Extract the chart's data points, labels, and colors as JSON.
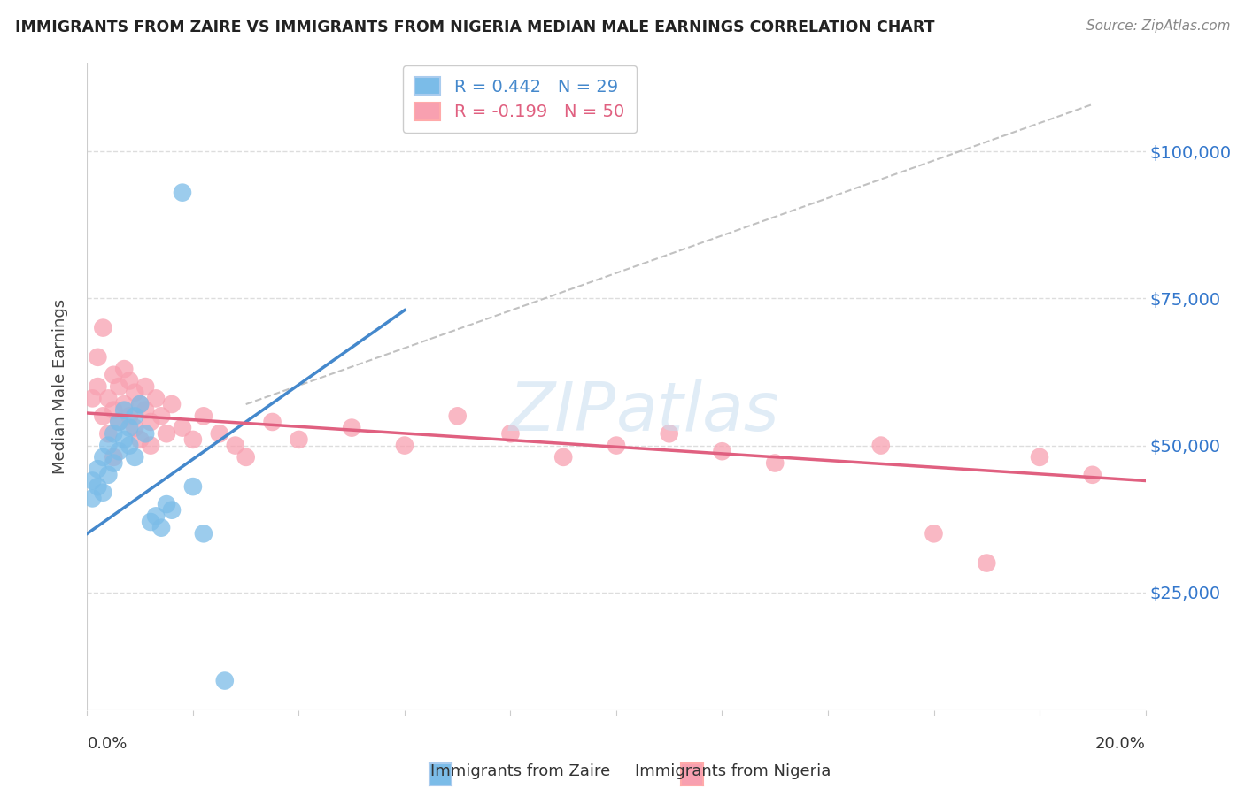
{
  "title": "IMMIGRANTS FROM ZAIRE VS IMMIGRANTS FROM NIGERIA MEDIAN MALE EARNINGS CORRELATION CHART",
  "source": "Source: ZipAtlas.com",
  "ylabel": "Median Male Earnings",
  "xlim": [
    0.0,
    0.2
  ],
  "ylim": [
    5000,
    115000
  ],
  "yticks": [
    25000,
    50000,
    75000,
    100000
  ],
  "ytick_labels": [
    "$25,000",
    "$50,000",
    "$75,000",
    "$100,000"
  ],
  "legend_r1": "R = 0.442   N = 29",
  "legend_r2": "R = -0.199   N = 50",
  "zaire_color": "#7bbce8",
  "nigeria_color": "#f8a0b0",
  "zaire_line_color": "#4488cc",
  "nigeria_line_color": "#e06080",
  "ref_line_color": "#bbbbbb",
  "background_color": "#ffffff",
  "grid_color": "#dddddd",
  "zaire_x": [
    0.001,
    0.001,
    0.002,
    0.002,
    0.003,
    0.003,
    0.004,
    0.004,
    0.005,
    0.005,
    0.006,
    0.006,
    0.007,
    0.007,
    0.008,
    0.008,
    0.009,
    0.009,
    0.01,
    0.011,
    0.012,
    0.013,
    0.014,
    0.015,
    0.016,
    0.018,
    0.02,
    0.022,
    0.026
  ],
  "zaire_y": [
    44000,
    41000,
    43000,
    46000,
    42000,
    48000,
    45000,
    50000,
    47000,
    52000,
    49000,
    54000,
    51000,
    56000,
    53000,
    50000,
    55000,
    48000,
    57000,
    52000,
    37000,
    38000,
    36000,
    40000,
    39000,
    93000,
    43000,
    35000,
    10000
  ],
  "nigeria_x": [
    0.001,
    0.002,
    0.002,
    0.003,
    0.003,
    0.004,
    0.004,
    0.005,
    0.005,
    0.005,
    0.006,
    0.006,
    0.007,
    0.007,
    0.008,
    0.008,
    0.009,
    0.009,
    0.01,
    0.01,
    0.011,
    0.011,
    0.012,
    0.012,
    0.013,
    0.014,
    0.015,
    0.016,
    0.018,
    0.02,
    0.022,
    0.025,
    0.028,
    0.03,
    0.035,
    0.04,
    0.05,
    0.06,
    0.07,
    0.08,
    0.09,
    0.1,
    0.11,
    0.12,
    0.13,
    0.15,
    0.16,
    0.17,
    0.18,
    0.19
  ],
  "nigeria_y": [
    58000,
    65000,
    60000,
    55000,
    70000,
    58000,
    52000,
    62000,
    56000,
    48000,
    60000,
    54000,
    63000,
    57000,
    61000,
    55000,
    59000,
    53000,
    57000,
    51000,
    60000,
    56000,
    54000,
    50000,
    58000,
    55000,
    52000,
    57000,
    53000,
    51000,
    55000,
    52000,
    50000,
    48000,
    54000,
    51000,
    53000,
    50000,
    55000,
    52000,
    48000,
    50000,
    52000,
    49000,
    47000,
    50000,
    35000,
    30000,
    48000,
    45000
  ]
}
